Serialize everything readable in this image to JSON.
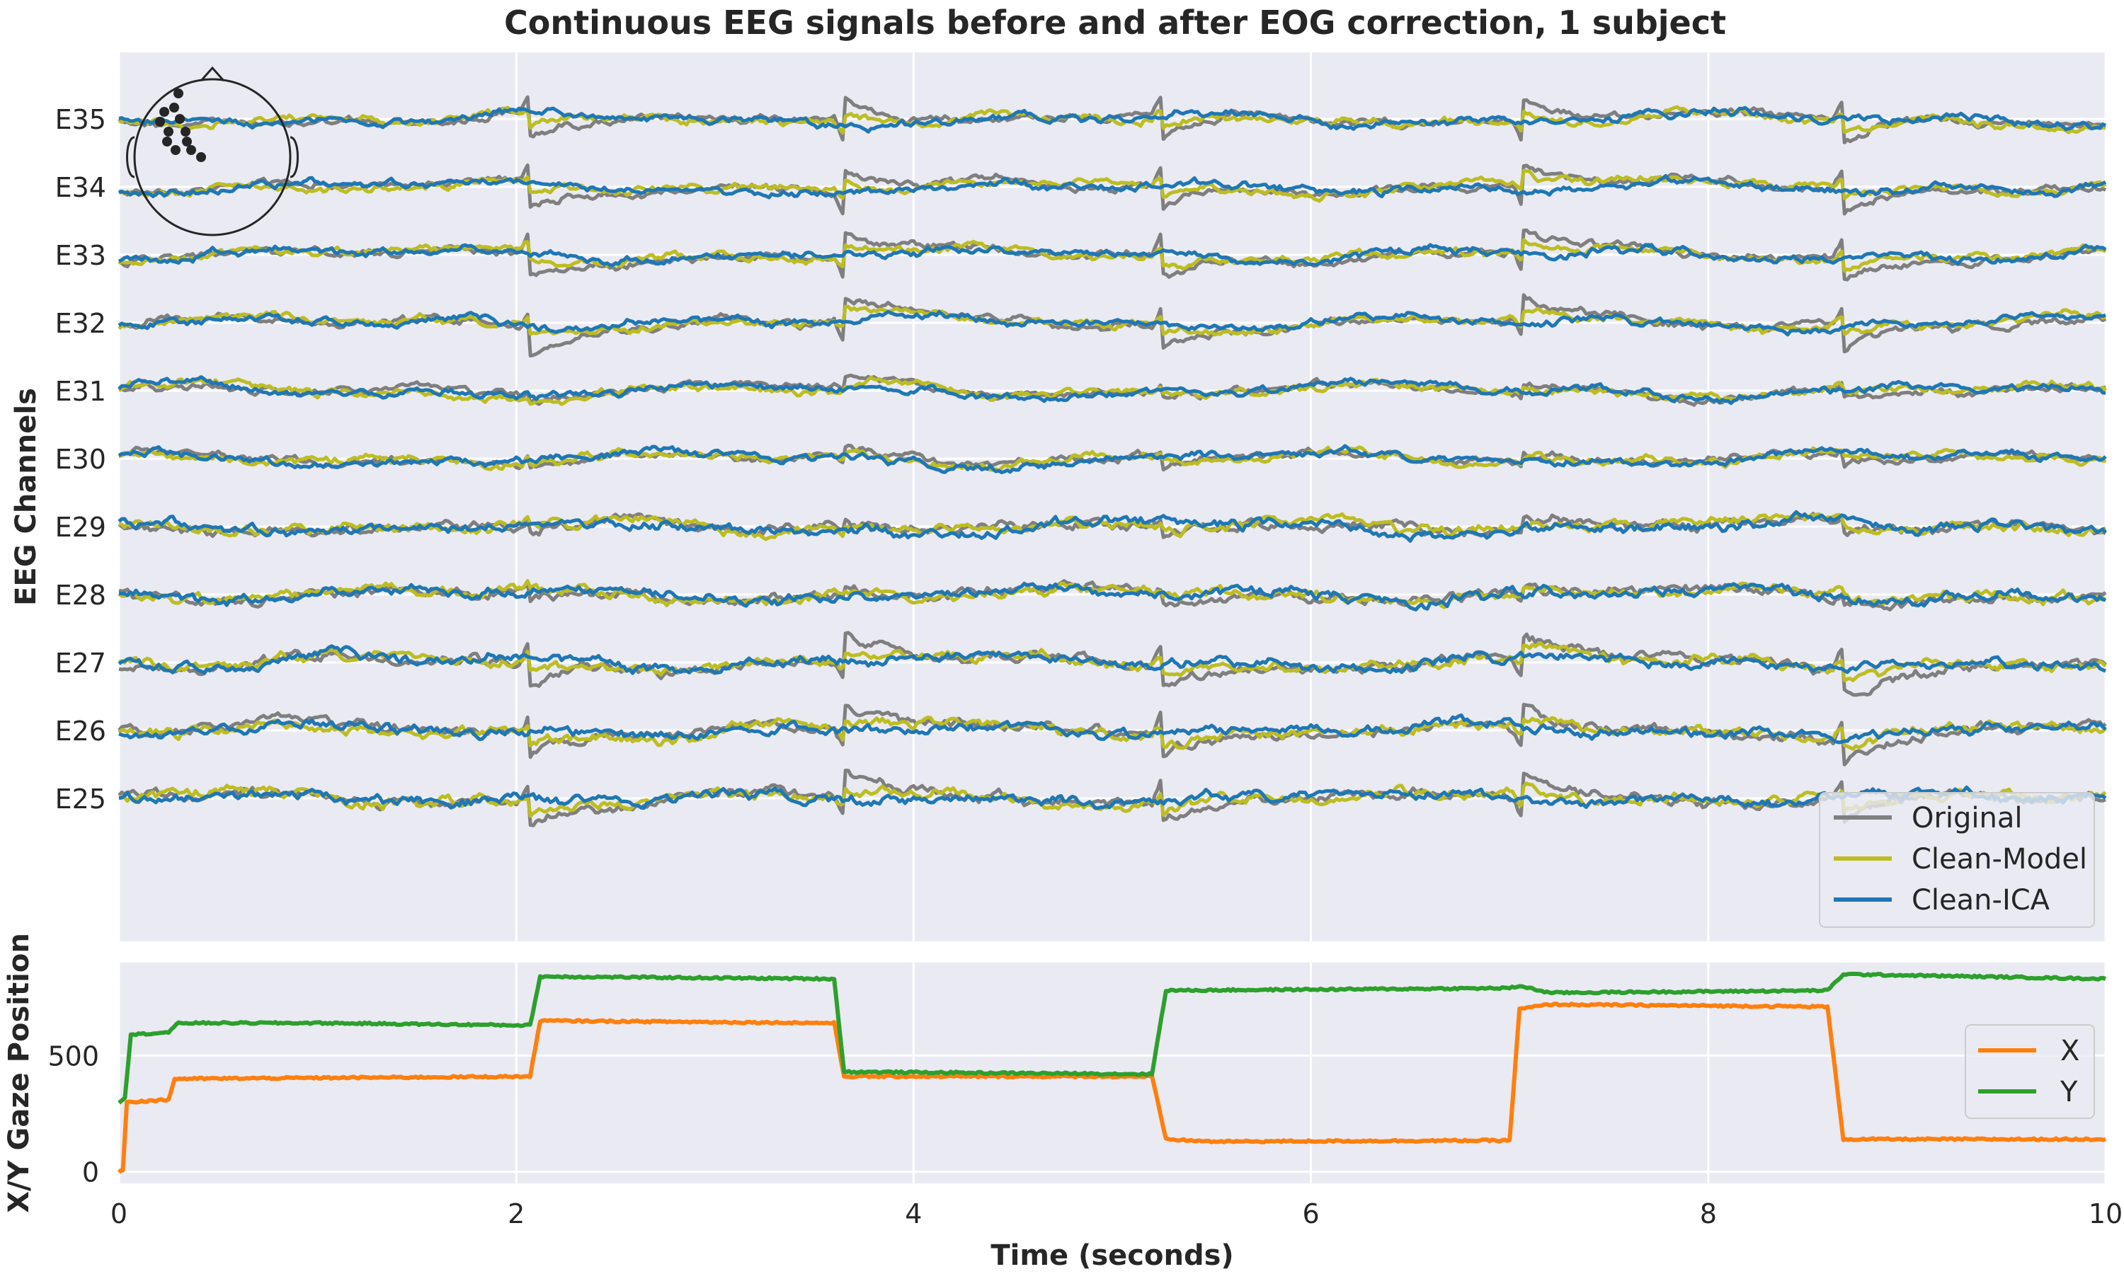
{
  "colors": {
    "background": "#eaeaf2",
    "grid": "#ffffff",
    "original": "#7f7f7f",
    "clean_model": "#bcbd22",
    "clean_ica": "#1f77b4",
    "gaze_x": "#ff7f0e",
    "gaze_y": "#2ca02c",
    "head": "#262626"
  },
  "icons": {
    "head_map": "electrode-head-map-icon"
  },
  "chart_data": [
    {
      "type": "line",
      "title": "Continuous EEG signals before and after EOG correction, 1 subject",
      "ylabel": "EEG Channels",
      "xlim": [
        0,
        10
      ],
      "x_ticks": [
        0,
        2,
        4,
        6,
        8,
        10
      ],
      "channels": [
        "E35",
        "E34",
        "E33",
        "E32",
        "E31",
        "E30",
        "E29",
        "E28",
        "E27",
        "E26",
        "E25"
      ],
      "legend": [
        "Original",
        "Clean-Model",
        "Clean-ICA"
      ],
      "legend_position": "bottom-right",
      "grid": true,
      "series": [
        {
          "name": "Original"
        },
        {
          "name": "Clean-Model"
        },
        {
          "name": "Clean-ICA"
        }
      ]
    },
    {
      "type": "line",
      "xlabel": "Time (seconds)",
      "ylabel": "X/Y Gaze Position",
      "xlim": [
        0,
        10
      ],
      "ylim": [
        -50,
        900
      ],
      "x_ticks": [
        "0",
        "2",
        "4",
        "6",
        "8",
        "10"
      ],
      "y_ticks": [
        "0",
        "500"
      ],
      "legend": [
        "X",
        "Y"
      ],
      "legend_position": "right",
      "grid": true,
      "series": [
        {
          "name": "X",
          "points": [
            [
              0,
              0
            ],
            [
              0.02,
              10
            ],
            [
              0.04,
              300
            ],
            [
              0.25,
              310
            ],
            [
              0.28,
              400
            ],
            [
              2.07,
              410
            ],
            [
              2.12,
              650
            ],
            [
              3.6,
              640
            ],
            [
              3.65,
              410
            ],
            [
              5.2,
              410
            ],
            [
              5.27,
              140
            ],
            [
              5.5,
              130
            ],
            [
              7.0,
              135
            ],
            [
              7.05,
              700
            ],
            [
              7.2,
              720
            ],
            [
              8.6,
              710
            ],
            [
              8.68,
              140
            ],
            [
              10,
              140
            ]
          ]
        },
        {
          "name": "Y",
          "points": [
            [
              0,
              300
            ],
            [
              0.03,
              320
            ],
            [
              0.06,
              590
            ],
            [
              0.25,
              600
            ],
            [
              0.3,
              640
            ],
            [
              1.0,
              640
            ],
            [
              2.07,
              630
            ],
            [
              2.12,
              840
            ],
            [
              3.6,
              830
            ],
            [
              3.65,
              430
            ],
            [
              5.2,
              420
            ],
            [
              5.27,
              780
            ],
            [
              7.0,
              790
            ],
            [
              7.05,
              800
            ],
            [
              7.2,
              770
            ],
            [
              8.6,
              780
            ],
            [
              8.68,
              850
            ],
            [
              10,
              830
            ]
          ]
        }
      ]
    }
  ]
}
